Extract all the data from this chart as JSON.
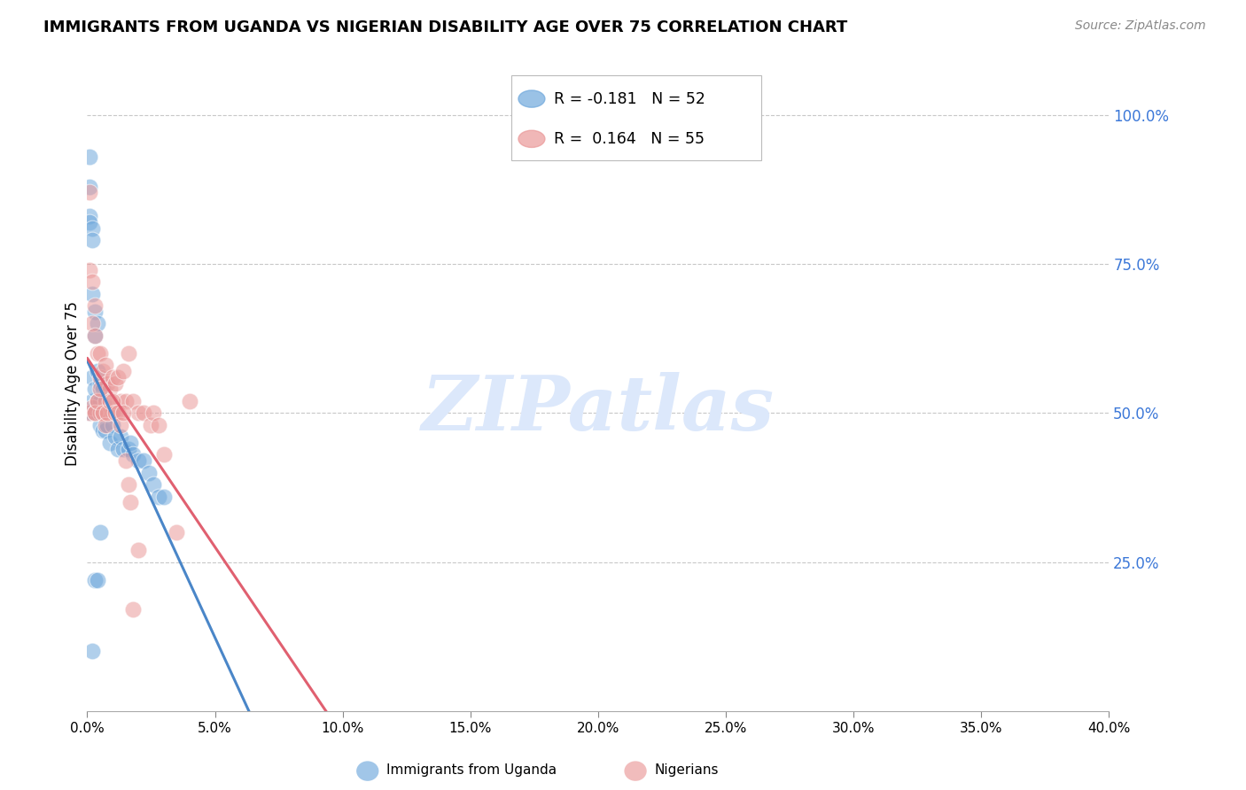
{
  "title": "IMMIGRANTS FROM UGANDA VS NIGERIAN DISABILITY AGE OVER 75 CORRELATION CHART",
  "source": "Source: ZipAtlas.com",
  "ylabel": "Disability Age Over 75",
  "right_ytick_values": [
    1.0,
    0.75,
    0.5,
    0.25
  ],
  "right_ytick_labels": [
    "100.0%",
    "75.0%",
    "50.0%",
    "25.0%"
  ],
  "uganda_R": -0.181,
  "uganda_N": 52,
  "nigeria_R": 0.164,
  "nigeria_N": 55,
  "uganda_color": "#6fa8dc",
  "nigeria_color": "#ea9999",
  "uganda_line_color": "#4a86c8",
  "nigeria_line_color": "#e06070",
  "background_color": "#ffffff",
  "watermark_text": "ZIPatlas",
  "watermark_color": "#dce8fb",
  "xmin": 0.0,
  "xmax": 0.4,
  "ymin": 0.0,
  "ymax": 1.1,
  "xtick_positions": [
    0.0,
    0.05,
    0.1,
    0.15,
    0.2,
    0.25,
    0.3,
    0.35,
    0.4
  ],
  "xtick_labels": [
    "0.0%",
    "5.0%",
    "10.0%",
    "15.0%",
    "20.0%",
    "25.0%",
    "30.0%",
    "35.0%",
    "40.0%"
  ],
  "uganda_x": [
    0.001,
    0.001,
    0.001,
    0.001,
    0.001,
    0.002,
    0.002,
    0.002,
    0.002,
    0.002,
    0.002,
    0.003,
    0.003,
    0.003,
    0.003,
    0.003,
    0.004,
    0.004,
    0.004,
    0.004,
    0.005,
    0.005,
    0.005,
    0.005,
    0.006,
    0.006,
    0.006,
    0.007,
    0.007,
    0.008,
    0.008,
    0.009,
    0.009,
    0.01,
    0.01,
    0.011,
    0.012,
    0.013,
    0.014,
    0.016,
    0.017,
    0.018,
    0.02,
    0.022,
    0.024,
    0.026,
    0.028,
    0.03,
    0.002,
    0.003,
    0.004,
    0.005
  ],
  "uganda_y": [
    0.93,
    0.88,
    0.83,
    0.82,
    0.5,
    0.81,
    0.79,
    0.7,
    0.56,
    0.52,
    0.5,
    0.67,
    0.63,
    0.54,
    0.51,
    0.5,
    0.65,
    0.57,
    0.52,
    0.5,
    0.55,
    0.52,
    0.5,
    0.48,
    0.54,
    0.5,
    0.47,
    0.5,
    0.47,
    0.51,
    0.48,
    0.5,
    0.45,
    0.5,
    0.48,
    0.46,
    0.44,
    0.46,
    0.44,
    0.44,
    0.45,
    0.43,
    0.42,
    0.42,
    0.4,
    0.38,
    0.36,
    0.36,
    0.1,
    0.22,
    0.22,
    0.3
  ],
  "nigeria_x": [
    0.001,
    0.001,
    0.001,
    0.002,
    0.002,
    0.002,
    0.003,
    0.003,
    0.003,
    0.004,
    0.004,
    0.005,
    0.005,
    0.005,
    0.006,
    0.006,
    0.007,
    0.007,
    0.008,
    0.008,
    0.009,
    0.01,
    0.01,
    0.011,
    0.012,
    0.013,
    0.014,
    0.015,
    0.016,
    0.018,
    0.02,
    0.022,
    0.025,
    0.026,
    0.028,
    0.03,
    0.035,
    0.04,
    0.003,
    0.004,
    0.005,
    0.006,
    0.007,
    0.008,
    0.009,
    0.01,
    0.011,
    0.012,
    0.013,
    0.014,
    0.015,
    0.016,
    0.017,
    0.018,
    0.02
  ],
  "nigeria_y": [
    0.87,
    0.74,
    0.5,
    0.72,
    0.65,
    0.51,
    0.68,
    0.63,
    0.5,
    0.6,
    0.52,
    0.6,
    0.56,
    0.5,
    0.57,
    0.5,
    0.58,
    0.52,
    0.55,
    0.5,
    0.54,
    0.56,
    0.5,
    0.55,
    0.56,
    0.52,
    0.57,
    0.52,
    0.6,
    0.52,
    0.5,
    0.5,
    0.48,
    0.5,
    0.48,
    0.43,
    0.3,
    0.52,
    0.5,
    0.52,
    0.54,
    0.5,
    0.48,
    0.5,
    0.52,
    0.52,
    0.5,
    0.5,
    0.48,
    0.5,
    0.42,
    0.38,
    0.35,
    0.17,
    0.27
  ]
}
